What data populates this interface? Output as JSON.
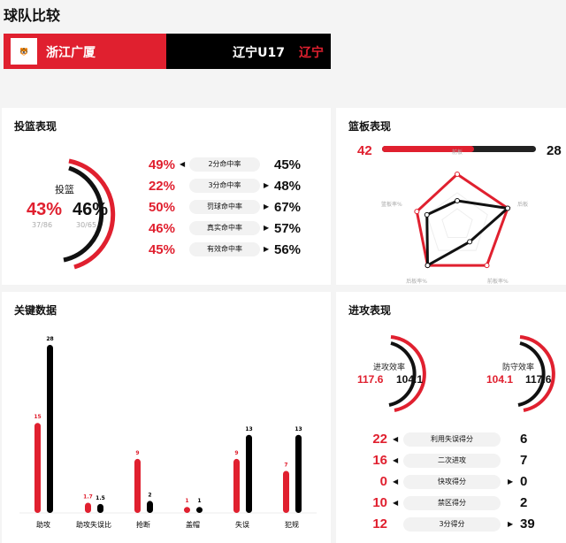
{
  "title": "球队比较",
  "teams": {
    "home": "浙江广厦",
    "home_logo": "浙江",
    "away": "辽宁U17",
    "away_logo": "辽宁"
  },
  "colors": {
    "home": "#e0202f",
    "away": "#111111"
  },
  "shooting": {
    "title": "投篮表现",
    "gauge": {
      "label": "投篮",
      "home_pct": "43%",
      "home_frac": "37/86",
      "away_pct": "46%",
      "away_frac": "30/65"
    },
    "rows": [
      {
        "label": "2分命中率",
        "home": "49%",
        "away": "45%",
        "leader": "home"
      },
      {
        "label": "3分命中率",
        "home": "22%",
        "away": "48%",
        "leader": "away"
      },
      {
        "label": "罚球命中率",
        "home": "50%",
        "away": "67%",
        "leader": "away"
      },
      {
        "label": "真实命中率",
        "home": "46%",
        "away": "57%",
        "leader": "away"
      },
      {
        "label": "有效命中率",
        "home": "45%",
        "away": "56%",
        "leader": "away"
      }
    ]
  },
  "rebounds": {
    "title": "篮板表现",
    "home": "42",
    "away": "28",
    "home_share": 0.6,
    "radar_labels": [
      "前板",
      "后板",
      "前板率%",
      "后板率%",
      "篮板率%"
    ],
    "radar_home": [
      0.95,
      1.0,
      0.95,
      0.95,
      0.8
    ],
    "radar_away": [
      0.45,
      1.0,
      0.4,
      0.95,
      0.6
    ]
  },
  "key": {
    "title": "关键数据",
    "chart_data": {
      "type": "bar",
      "categories": [
        "助攻",
        "助攻失误比",
        "抢断",
        "盖帽",
        "失误",
        "犯规"
      ],
      "series": [
        {
          "values": [
            15,
            1.7,
            9,
            1,
            9,
            7
          ]
        },
        {
          "values": [
            28,
            1.5,
            2,
            1,
            13,
            13
          ]
        }
      ],
      "labels": [
        [
          "15",
          "28"
        ],
        [
          "1.7",
          "1.5"
        ],
        [
          "9",
          "2"
        ],
        [
          "1",
          "1"
        ],
        [
          "9",
          "13"
        ],
        [
          "7",
          "13"
        ]
      ]
    }
  },
  "offense": {
    "title": "进攻表现",
    "gauges": [
      {
        "label": "进攻效率",
        "home": "117.6",
        "away": "104.1"
      },
      {
        "label": "防守效率",
        "home": "104.1",
        "away": "117.6"
      }
    ],
    "rows": [
      {
        "label": "利用失误得分",
        "home": "22",
        "away": "6",
        "leader": "home"
      },
      {
        "label": "二次进攻",
        "home": "16",
        "away": "7",
        "leader": "home"
      },
      {
        "label": "快攻得分",
        "home": "0",
        "away": "0",
        "leader": "both"
      },
      {
        "label": "禁区得分",
        "home": "10",
        "away": "2",
        "leader": "home"
      },
      {
        "label": "3分得分",
        "home": "12",
        "away": "39",
        "leader": "away"
      }
    ]
  }
}
